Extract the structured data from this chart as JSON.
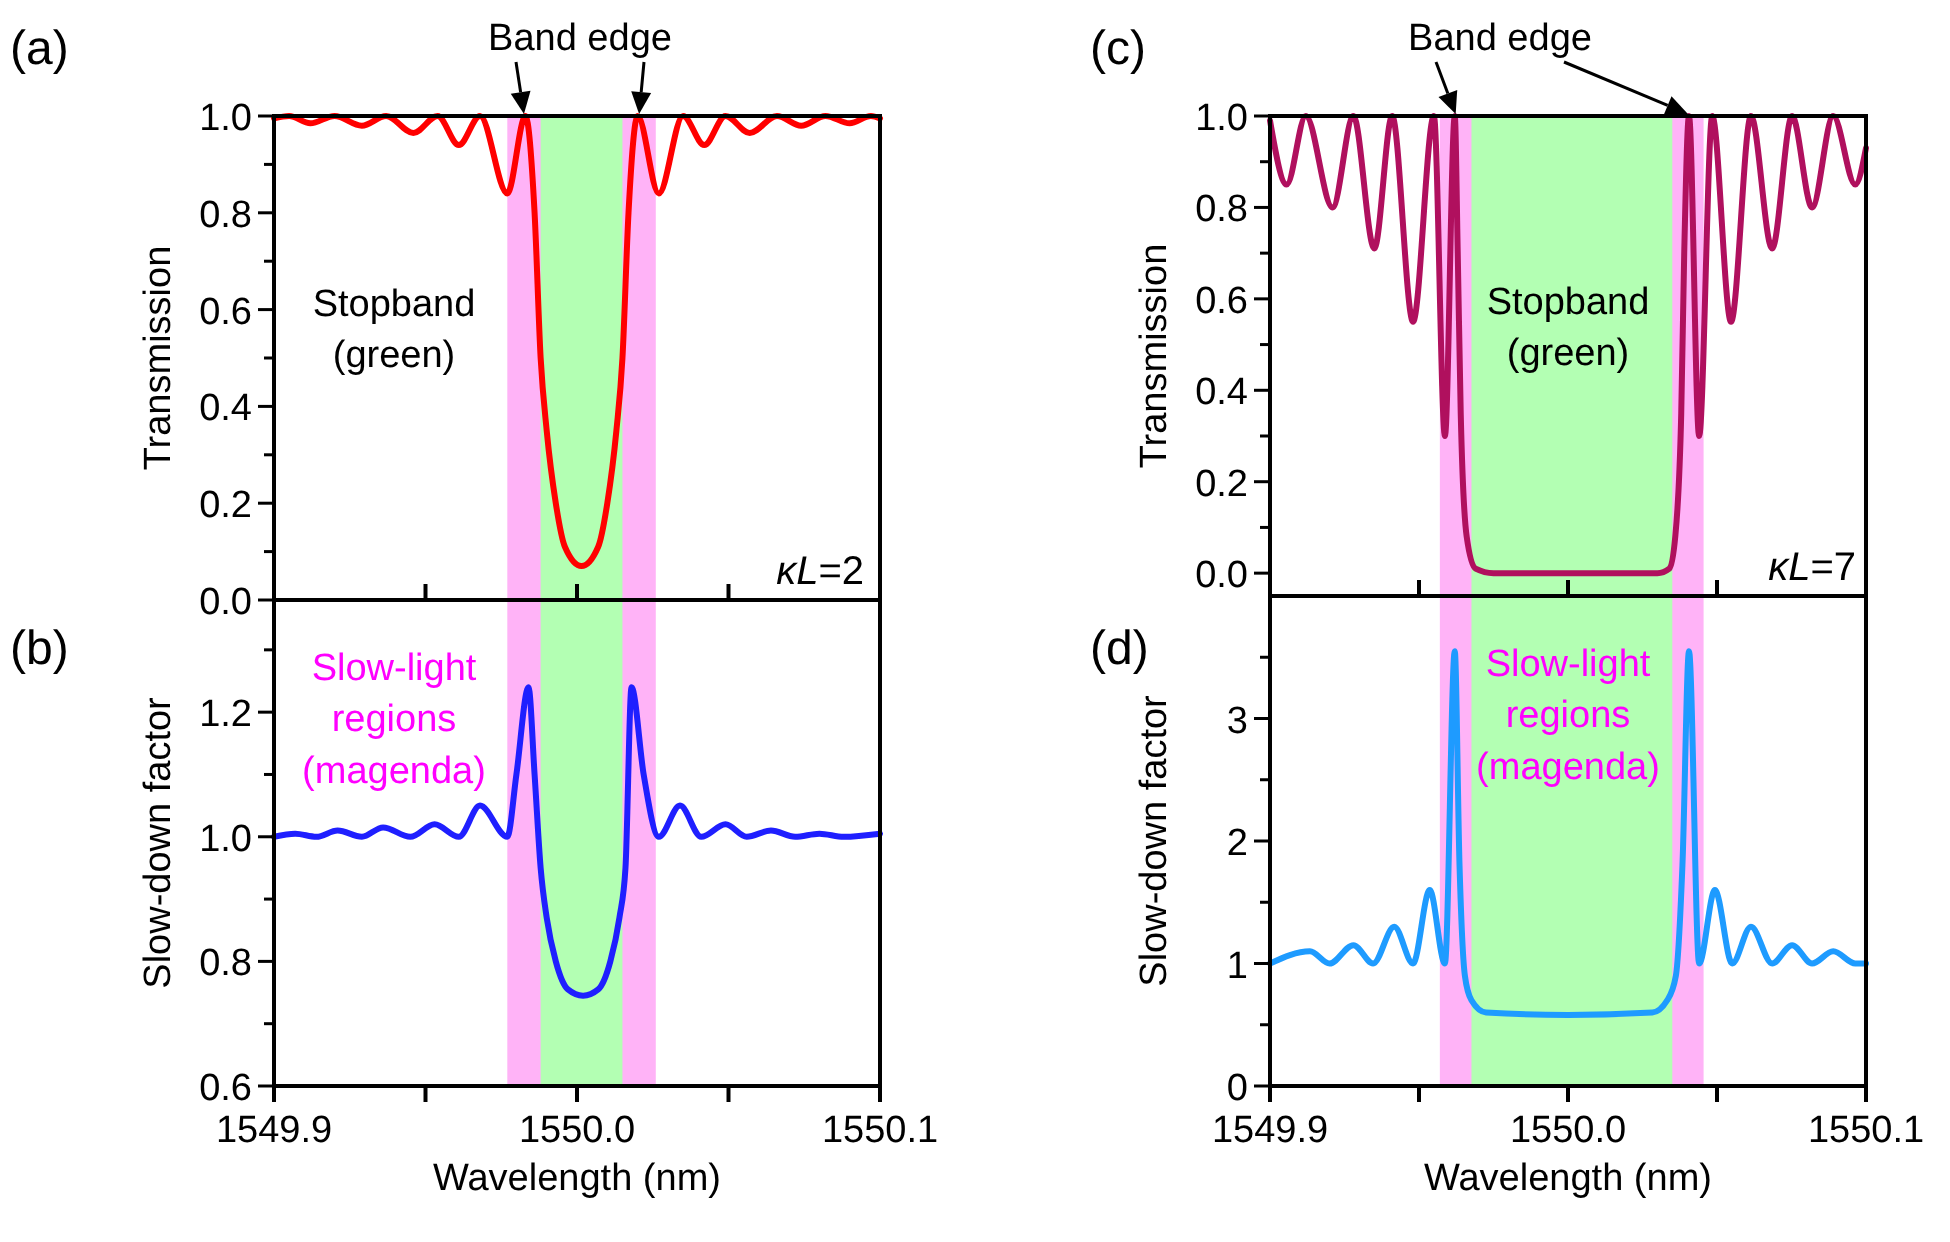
{
  "chart_data": [
    {
      "type": "line",
      "ylabel": "Transmission",
      "xlim": [
        1549.9,
        1550.1
      ],
      "xticks": [
        1549.9,
        {
          "value": 1549.95,
          "label": null
        },
        1550,
        {
          "value": 1550.05,
          "label": null
        },
        1550.1
      ],
      "ylim": [
        0,
        1
      ],
      "yticks": [
        {
          "value": 0,
          "label": "0.0"
        },
        {
          "value": 0.1,
          "label": null
        },
        0.2,
        {
          "value": 0.3,
          "label": null
        },
        0.4,
        {
          "value": 0.5,
          "label": null
        },
        0.6,
        {
          "value": 0.7,
          "label": null
        },
        0.8,
        {
          "value": 0.9,
          "label": null
        },
        {
          "value": 1,
          "label": "1.0"
        }
      ],
      "tick_labels": "y",
      "grid": false,
      "x": [
        1549.9,
        1549.905,
        1549.912,
        1549.92,
        1549.929,
        1549.937,
        1549.946,
        1549.954,
        1549.961,
        1549.968,
        1549.977,
        1549.983,
        1549.986,
        1549.988,
        1549.99,
        1549.993,
        1549.996,
        1550.0015,
        1550.007,
        1550.01,
        1550.013,
        1550.015,
        1550.017,
        1550.02,
        1550.027,
        1550.035,
        1550.042,
        1550.049,
        1550.057,
        1550.066,
        1550.074,
        1550.082,
        1550.09,
        1550.097,
        1550.1
      ],
      "series": [
        {
          "color": "#ff0000",
          "values": [
            0.995,
            1.0,
            0.985,
            1.0,
            0.98,
            1.0,
            0.965,
            1.0,
            0.94,
            1.0,
            0.84,
            1.0,
            0.8,
            0.5,
            0.35,
            0.2,
            0.11,
            0.07,
            0.11,
            0.2,
            0.35,
            0.5,
            0.8,
            1.0,
            0.84,
            1.0,
            0.94,
            1.0,
            0.965,
            1.0,
            0.98,
            1.0,
            0.985,
            1.0,
            0.995
          ]
        }
      ],
      "bands": [
        {
          "axis": "x",
          "from": 1549.977,
          "to": 1550.026,
          "color": "#ffb3f7"
        },
        {
          "axis": "x",
          "from": 1549.988,
          "to": 1550.015,
          "color": "#b3ffb3"
        }
      ],
      "annotations": [
        "(a)",
        "Band edge",
        "Stopband\n(green)",
        "κL=2"
      ]
    },
    {
      "type": "line",
      "ylabel": "Slow-down factor",
      "xlabel": "Wavelength (nm)",
      "xlim": [
        1549.9,
        1550.1
      ],
      "xticks": [
        1549.9,
        {
          "value": 1549.95,
          "label": null
        },
        {
          "value": 1550.0,
          "label": "1550.0"
        },
        {
          "value": 1550.05,
          "label": null
        },
        1550.1
      ],
      "ylim": [
        0.6,
        1.38
      ],
      "yticks": [
        0.6,
        {
          "value": 0.7,
          "label": null
        },
        0.8,
        {
          "value": 0.9,
          "label": null
        },
        {
          "value": 1,
          "label": "1.0"
        },
        {
          "value": 1.1,
          "label": null
        },
        1.2,
        {
          "value": 1.3,
          "label": null
        }
      ],
      "grid": false,
      "x": [
        1549.9,
        1549.907,
        1549.914,
        1549.921,
        1549.929,
        1549.936,
        1549.945,
        1549.953,
        1549.961,
        1549.968,
        1549.977,
        1549.98,
        1549.984,
        1549.986,
        1549.988,
        1549.99,
        1549.993,
        1549.997,
        1550.002,
        1550.007,
        1550.011,
        1550.014,
        1550.016,
        1550.018,
        1550.022,
        1550.027,
        1550.034,
        1550.041,
        1550.049,
        1550.056,
        1550.064,
        1550.072,
        1550.08,
        1550.088,
        1550.1
      ],
      "series": [
        {
          "color": "#1f1fff",
          "values": [
            1.0,
            1.005,
            1.0,
            1.01,
            1.0,
            1.015,
            1.0,
            1.02,
            1.0,
            1.05,
            1.0,
            1.1,
            1.24,
            1.1,
            0.95,
            0.87,
            0.8,
            0.755,
            0.745,
            0.755,
            0.8,
            0.87,
            0.95,
            1.24,
            1.1,
            1.0,
            1.05,
            1.0,
            1.02,
            1.0,
            1.01,
            1.0,
            1.005,
            1.0,
            1.005
          ]
        }
      ],
      "bands": [
        {
          "axis": "x",
          "from": 1549.977,
          "to": 1550.026,
          "color": "#ffb3f7"
        },
        {
          "axis": "x",
          "from": 1549.988,
          "to": 1550.015,
          "color": "#b3ffb3"
        }
      ],
      "annotations": [
        "(b)",
        "Slow-light\nregions\n(magenda)"
      ]
    },
    {
      "type": "line",
      "ylabel": "Transmission",
      "xlim": [
        1549.9,
        1550.1
      ],
      "xticks": [
        1549.9,
        {
          "value": 1549.95,
          "label": null
        },
        1550,
        {
          "value": 1550.05,
          "label": null
        },
        1550.1
      ],
      "ylim": [
        -0.05,
        1
      ],
      "yticks": [
        {
          "value": 0,
          "label": "0.0"
        },
        {
          "value": 0.1,
          "label": null
        },
        0.2,
        {
          "value": 0.3,
          "label": null
        },
        0.4,
        {
          "value": 0.5,
          "label": null
        },
        0.6,
        {
          "value": 0.7,
          "label": null
        },
        0.8,
        {
          "value": 0.9,
          "label": null
        },
        {
          "value": 1,
          "label": "1.0"
        }
      ],
      "tick_labels": "y",
      "grid": false,
      "x": [
        1549.9,
        1549.9056,
        1549.912,
        1549.921,
        1549.928,
        1549.935,
        1549.941,
        1549.948,
        1549.955,
        1549.9587,
        1549.962,
        1549.963,
        1549.964,
        1549.966,
        1549.969,
        1549.975,
        1550.0,
        1550.03,
        1550.034,
        1550.036,
        1550.038,
        1550.039,
        1550.0406,
        1550.044,
        1550.0484,
        1550.0547,
        1550.0614,
        1550.0685,
        1550.0752,
        1550.0819,
        1550.089,
        1550.0964,
        1550.1
      ],
      "series": [
        {
          "color": "#b0105e",
          "values": [
            0.99,
            0.85,
            1.0,
            0.8,
            1.0,
            0.71,
            1.0,
            0.55,
            1.0,
            0.3,
            1.0,
            0.7,
            0.35,
            0.08,
            0.01,
            0.0,
            0.0,
            0.0,
            0.01,
            0.08,
            0.35,
            0.7,
            1.0,
            0.3,
            1.0,
            0.55,
            1.0,
            0.71,
            1.0,
            0.8,
            1.0,
            0.85,
            0.93
          ]
        }
      ],
      "bands": [
        {
          "axis": "x",
          "from": 1549.957,
          "to": 1550.0455,
          "color": "#ffb3f7"
        },
        {
          "axis": "x",
          "from": 1549.9676,
          "to": 1550.035,
          "color": "#b3ffb3"
        }
      ],
      "annotations": [
        "(c)",
        "Band edge",
        "Stopband\n(green)",
        "κL=7"
      ]
    },
    {
      "type": "line",
      "ylabel": "Slow-down factor",
      "xlabel": "Wavelength (nm)",
      "xlim": [
        1549.9,
        1550.1
      ],
      "xticks": [
        1549.9,
        {
          "value": 1549.95,
          "label": null
        },
        {
          "value": 1550.0,
          "label": "1550.0"
        },
        {
          "value": 1550.05,
          "label": null
        },
        1550.1
      ],
      "ylim": [
        0,
        4
      ],
      "yticks": [
        0,
        {
          "value": 0.5,
          "label": null
        },
        1,
        {
          "value": 1.5,
          "label": null
        },
        2,
        {
          "value": 2.5,
          "label": null
        },
        3,
        {
          "value": 3.5,
          "label": null
        }
      ],
      "grid": false,
      "x": [
        1549.9,
        1549.9134,
        1549.92,
        1549.928,
        1549.9346,
        1549.9417,
        1549.948,
        1549.9536,
        1549.9587,
        1549.962,
        1549.9636,
        1549.9654,
        1549.9676,
        1549.9725,
        1550.0,
        1550.0283,
        1550.0333,
        1550.0362,
        1550.0384,
        1550.0406,
        1550.044,
        1550.0493,
        1550.0551,
        1550.0614,
        1550.0685,
        1550.0752,
        1550.0819,
        1550.089,
        1550.0964,
        1550.1
      ],
      "series": [
        {
          "color": "#1e9bff",
          "values": [
            1.0,
            1.1,
            1.0,
            1.15,
            1.0,
            1.3,
            1.0,
            1.6,
            1.0,
            3.55,
            1.8,
            0.9,
            0.7,
            0.6,
            0.58,
            0.6,
            0.7,
            0.9,
            1.8,
            3.55,
            1.0,
            1.6,
            1.0,
            1.3,
            1.0,
            1.15,
            1.0,
            1.1,
            1.0,
            1.0
          ]
        }
      ],
      "bands": [
        {
          "axis": "x",
          "from": 1549.957,
          "to": 1550.0455,
          "color": "#ffb3f7"
        },
        {
          "axis": "x",
          "from": 1549.9676,
          "to": 1550.035,
          "color": "#b3ffb3"
        }
      ],
      "annotations": [
        "(d)",
        "Slow-light\nregions\n(magenda)"
      ]
    }
  ]
}
